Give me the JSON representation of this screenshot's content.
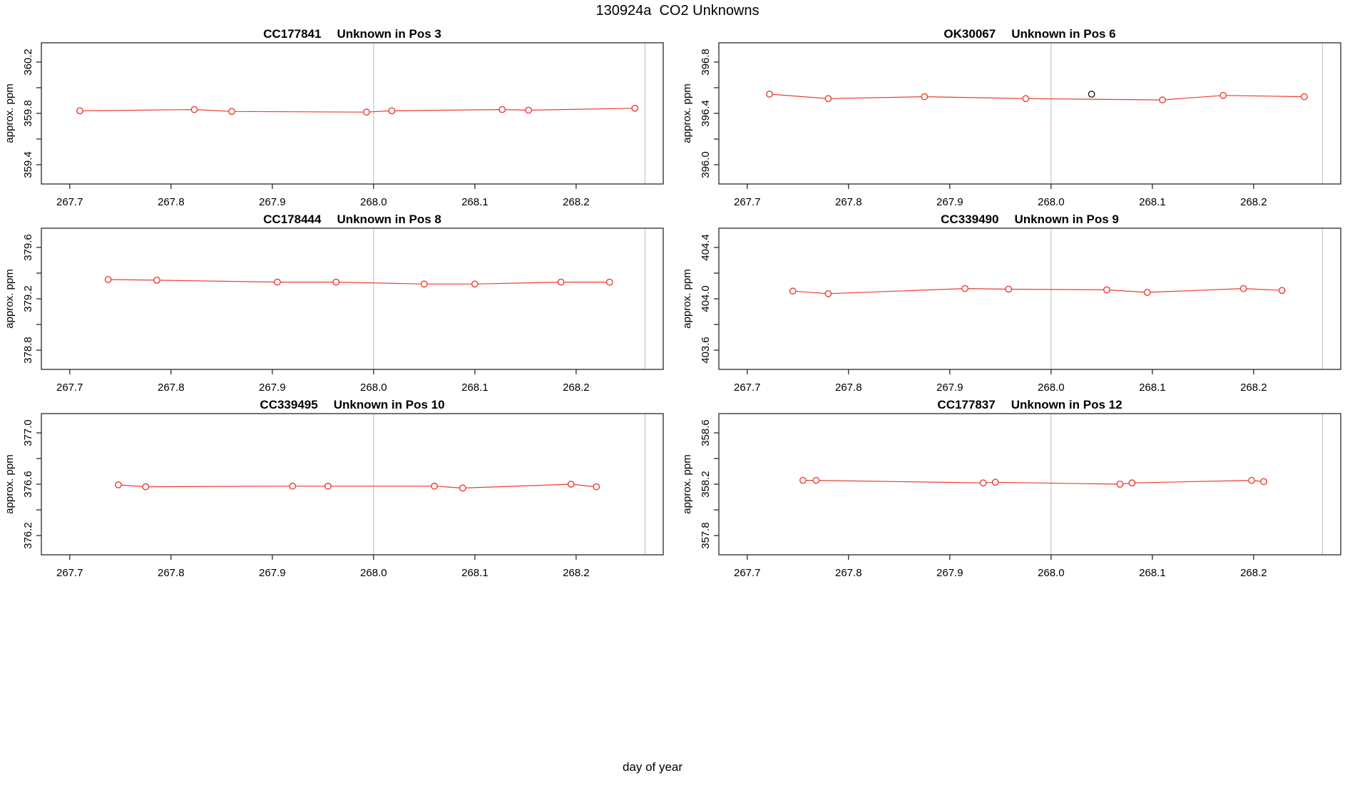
{
  "page_title": "130924a  CO2 Unknowns",
  "shared_x_axis_label": "day of year",
  "colors": {
    "series_red": "#ee3b2f",
    "outlier_black": "#1c1c1c",
    "gridline": "#c8c8c8",
    "axis": "#2a2a2a",
    "background": "#ffffff"
  },
  "layout_hints": {
    "grid": "3 rows x 2 columns",
    "legend": "none",
    "gridlines_x_values": [
      268.0,
      268.268
    ],
    "tick_style": "outward, minor y ticks unlabeled"
  },
  "chart_data": [
    {
      "type": "line",
      "station": "CC177841",
      "position_label": "Unknown in Pos 3",
      "ylabel": "approx. ppm",
      "xlim": [
        267.672,
        268.286
      ],
      "ylim": [
        359.25,
        360.35
      ],
      "x_ticks": [
        267.7,
        267.8,
        267.9,
        268.0,
        268.1,
        268.2
      ],
      "x_tick_labels": [
        "267.7",
        "267.8",
        "267.9",
        "268.0",
        "268.1",
        "268.2"
      ],
      "y_ticks": [
        359.4,
        359.6,
        359.8,
        360.0,
        360.2
      ],
      "y_tick_labels": [
        "359.4",
        "",
        "359.8",
        "",
        "360.2"
      ],
      "grid_x": [
        268.0,
        268.268
      ],
      "series": [
        {
          "name": "co2-unknown",
          "color_key": "series_red",
          "connect": true,
          "points": [
            [
              267.71,
              359.82
            ],
            [
              267.823,
              359.83
            ],
            [
              267.86,
              359.815
            ],
            [
              267.993,
              359.81
            ],
            [
              268.018,
              359.82
            ],
            [
              268.127,
              359.83
            ],
            [
              268.153,
              359.825
            ],
            [
              268.258,
              359.84
            ]
          ]
        }
      ]
    },
    {
      "type": "line",
      "station": "OK30067",
      "position_label": "Unknown in Pos 6",
      "ylabel": "approx. ppm",
      "xlim": [
        267.672,
        268.286
      ],
      "ylim": [
        395.85,
        396.95
      ],
      "x_ticks": [
        267.7,
        267.8,
        267.9,
        268.0,
        268.1,
        268.2
      ],
      "x_tick_labels": [
        "267.7",
        "267.8",
        "267.9",
        "268.0",
        "268.1",
        "268.2"
      ],
      "y_ticks": [
        396.0,
        396.2,
        396.4,
        396.6,
        396.8
      ],
      "y_tick_labels": [
        "396.0",
        "",
        "396.4",
        "",
        "396.8"
      ],
      "grid_x": [
        268.0,
        268.268
      ],
      "series": [
        {
          "name": "co2-unknown",
          "color_key": "series_red",
          "connect": true,
          "points": [
            [
              267.722,
              396.55
            ],
            [
              267.78,
              396.515
            ],
            [
              267.875,
              396.53
            ],
            [
              267.975,
              396.515
            ],
            [
              268.11,
              396.505
            ],
            [
              268.17,
              396.54
            ],
            [
              268.25,
              396.53
            ]
          ]
        },
        {
          "name": "co2-flagged",
          "color_key": "outlier_black",
          "connect": false,
          "points": [
            [
              268.04,
              396.55
            ]
          ]
        }
      ]
    },
    {
      "type": "line",
      "station": "CC178444",
      "position_label": "Unknown in Pos 8",
      "ylabel": "approx. ppm",
      "xlim": [
        267.672,
        268.286
      ],
      "ylim": [
        378.65,
        379.75
      ],
      "x_ticks": [
        267.7,
        267.8,
        267.9,
        268.0,
        268.1,
        268.2
      ],
      "x_tick_labels": [
        "267.7",
        "267.8",
        "267.9",
        "268.0",
        "268.1",
        "268.2"
      ],
      "y_ticks": [
        378.8,
        379.0,
        379.2,
        379.4,
        379.6
      ],
      "y_tick_labels": [
        "378.8",
        "",
        "379.2",
        "",
        "379.6"
      ],
      "grid_x": [
        268.0,
        268.268
      ],
      "series": [
        {
          "name": "co2-unknown",
          "color_key": "series_red",
          "connect": true,
          "points": [
            [
              267.738,
              379.35
            ],
            [
              267.786,
              379.345
            ],
            [
              267.905,
              379.33
            ],
            [
              267.963,
              379.33
            ],
            [
              268.05,
              379.315
            ],
            [
              268.1,
              379.315
            ],
            [
              268.185,
              379.33
            ],
            [
              268.233,
              379.33
            ]
          ]
        }
      ]
    },
    {
      "type": "line",
      "station": "CC339490",
      "position_label": "Unknown in Pos 9",
      "ylabel": "approx. ppm",
      "xlim": [
        267.672,
        268.286
      ],
      "ylim": [
        403.45,
        404.55
      ],
      "x_ticks": [
        267.7,
        267.8,
        267.9,
        268.0,
        268.1,
        268.2
      ],
      "x_tick_labels": [
        "267.7",
        "267.8",
        "267.9",
        "268.0",
        "268.1",
        "268.2"
      ],
      "y_ticks": [
        403.6,
        403.8,
        404.0,
        404.2,
        404.4
      ],
      "y_tick_labels": [
        "403.6",
        "",
        "404.0",
        "",
        "404.4"
      ],
      "grid_x": [
        268.0,
        268.268
      ],
      "series": [
        {
          "name": "co2-unknown",
          "color_key": "series_red",
          "connect": true,
          "points": [
            [
              267.745,
              404.06
            ],
            [
              267.78,
              404.04
            ],
            [
              267.915,
              404.08
            ],
            [
              267.958,
              404.075
            ],
            [
              268.055,
              404.07
            ],
            [
              268.095,
              404.05
            ],
            [
              268.19,
              404.08
            ],
            [
              268.228,
              404.065
            ]
          ]
        }
      ]
    },
    {
      "type": "line",
      "station": "CC339495",
      "position_label": "Unknown in Pos 10",
      "ylabel": "approx. ppm",
      "xlim": [
        267.672,
        268.286
      ],
      "ylim": [
        376.05,
        377.15
      ],
      "x_ticks": [
        267.7,
        267.8,
        267.9,
        268.0,
        268.1,
        268.2
      ],
      "x_tick_labels": [
        "267.7",
        "267.8",
        "267.9",
        "268.0",
        "268.1",
        "268.2"
      ],
      "y_ticks": [
        376.2,
        376.4,
        376.6,
        376.8,
        377.0
      ],
      "y_tick_labels": [
        "376.2",
        "",
        "376.6",
        "",
        "377.0"
      ],
      "grid_x": [
        268.0,
        268.268
      ],
      "series": [
        {
          "name": "co2-unknown",
          "color_key": "series_red",
          "connect": true,
          "points": [
            [
              267.748,
              376.595
            ],
            [
              267.775,
              376.58
            ],
            [
              267.92,
              376.585
            ],
            [
              267.955,
              376.585
            ],
            [
              268.06,
              376.585
            ],
            [
              268.088,
              376.57
            ],
            [
              268.195,
              376.6
            ],
            [
              268.22,
              376.58
            ]
          ]
        }
      ]
    },
    {
      "type": "line",
      "station": "CC177837",
      "position_label": "Unknown in Pos 12",
      "ylabel": "approx. ppm",
      "xlim": [
        267.672,
        268.286
      ],
      "ylim": [
        357.65,
        358.75
      ],
      "x_ticks": [
        267.7,
        267.8,
        267.9,
        268.0,
        268.1,
        268.2
      ],
      "x_tick_labels": [
        "267.7",
        "267.8",
        "267.9",
        "268.0",
        "268.1",
        "268.2"
      ],
      "y_ticks": [
        357.8,
        358.0,
        358.2,
        358.4,
        358.6
      ],
      "y_tick_labels": [
        "357.8",
        "",
        "358.2",
        "",
        "358.6"
      ],
      "grid_x": [
        268.0,
        268.268
      ],
      "series": [
        {
          "name": "co2-unknown",
          "color_key": "series_red",
          "connect": true,
          "points": [
            [
              267.755,
              358.23
            ],
            [
              267.768,
              358.23
            ],
            [
              267.933,
              358.21
            ],
            [
              267.945,
              358.215
            ],
            [
              268.068,
              358.2
            ],
            [
              268.08,
              358.21
            ],
            [
              268.198,
              358.23
            ],
            [
              268.21,
              358.22
            ]
          ]
        }
      ]
    }
  ]
}
